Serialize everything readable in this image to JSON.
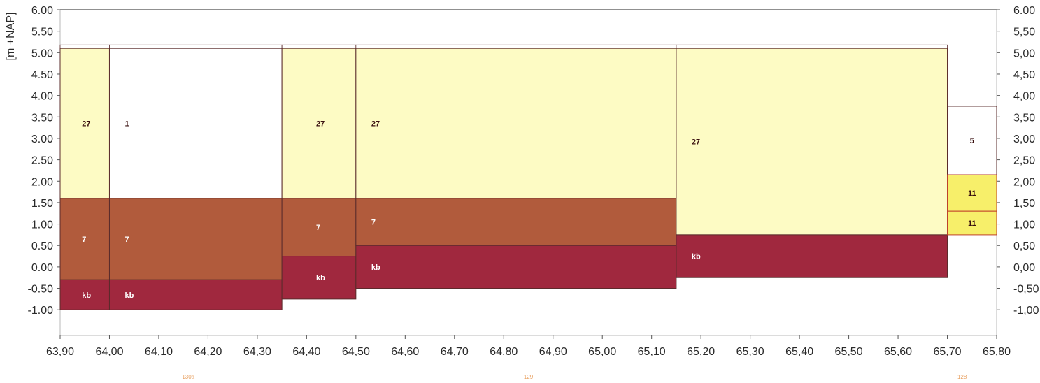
{
  "chart_data": {
    "type": "stacked-profile",
    "ylabel": "[m +NAP]",
    "xlim": [
      63.9,
      65.8
    ],
    "ylim": [
      -1.6,
      6.0
    ],
    "y_ticks_left": [
      "6.00",
      "5.50",
      "5.00",
      "4.50",
      "4.00",
      "3.50",
      "3.00",
      "2.50",
      "2.00",
      "1.50",
      "1.00",
      "0.50",
      "0.00",
      "-0.50",
      "-1.00"
    ],
    "y_ticks_right": [
      "6.00",
      "5,50",
      "5,00",
      "4,50",
      "4,00",
      "3,50",
      "3,00",
      "2,50",
      "2,00",
      "1,50",
      "1,00",
      "0,50",
      "0,00",
      "-0,50",
      "-1,00"
    ],
    "y_tick_values": [
      6.0,
      5.5,
      5.0,
      4.5,
      4.0,
      3.5,
      3.0,
      2.5,
      2.0,
      1.5,
      1.0,
      0.5,
      0.0,
      -0.5,
      -1.0
    ],
    "x_ticks": [
      "63,90",
      "64,00",
      "64,10",
      "64,20",
      "64,30",
      "64,40",
      "64,50",
      "64,60",
      "64,70",
      "64,80",
      "64,90",
      "65,00",
      "65,10",
      "65,20",
      "65,30",
      "65,40",
      "65,50",
      "65,60",
      "65,70",
      "65,80"
    ],
    "x_tick_values": [
      63.9,
      64.0,
      64.1,
      64.2,
      64.3,
      64.4,
      64.5,
      64.6,
      64.7,
      64.8,
      64.9,
      65.0,
      65.1,
      65.2,
      65.3,
      65.4,
      65.5,
      65.6,
      65.7,
      65.8
    ],
    "bottom_labels": [
      {
        "text": "130a",
        "x": 64.16
      },
      {
        "text": "129",
        "x": 64.85
      },
      {
        "text": "128",
        "x": 65.73
      }
    ],
    "colors": {
      "layer_27": "#fdfbc4",
      "layer_1": "#ffffff",
      "layer_7": "#b15b3c",
      "layer_kb": "#a0283e",
      "layer_5": "#ffffff",
      "layer_11": "#f7ef6a",
      "line": "#5a2b2b"
    },
    "columns": [
      {
        "x0": 63.9,
        "x1": 64.0,
        "top": 5.18,
        "layers": [
          {
            "code": "27",
            "top": 5.1,
            "bottom": 1.6
          },
          {
            "code": "7",
            "top": 1.6,
            "bottom": -0.3
          },
          {
            "code": "kb",
            "top": -0.3,
            "bottom": -1.0
          }
        ]
      },
      {
        "x0": 64.0,
        "x1": 64.35,
        "top": 5.18,
        "layers": [
          {
            "code": "1",
            "top": 5.1,
            "bottom": 1.6
          },
          {
            "code": "7",
            "top": 1.6,
            "bottom": -0.3
          },
          {
            "code": "kb",
            "top": -0.3,
            "bottom": -1.0
          }
        ]
      },
      {
        "x0": 64.35,
        "x1": 64.5,
        "top": 5.18,
        "layers": [
          {
            "code": "27",
            "top": 5.1,
            "bottom": 1.6
          },
          {
            "code": "7",
            "top": 1.6,
            "bottom": 0.25
          },
          {
            "code": "kb",
            "top": 0.25,
            "bottom": -0.75
          }
        ]
      },
      {
        "x0": 64.5,
        "x1": 65.15,
        "top": 5.18,
        "layers": [
          {
            "code": "27",
            "top": 5.1,
            "bottom": 1.6
          },
          {
            "code": "7",
            "top": 1.6,
            "bottom": 0.5
          },
          {
            "code": "kb",
            "top": 0.5,
            "bottom": -0.5
          }
        ]
      },
      {
        "x0": 65.15,
        "x1": 65.7,
        "top": 5.18,
        "layers": [
          {
            "code": "27",
            "top": 5.1,
            "bottom": 0.75
          },
          {
            "code": "kb",
            "top": 0.75,
            "bottom": -0.25
          }
        ]
      },
      {
        "x0": 65.7,
        "x1": 65.8,
        "top": 3.75,
        "layers": [
          {
            "code": "5",
            "top": 3.75,
            "bottom": 2.15
          },
          {
            "code": "11",
            "top": 2.15,
            "bottom": 1.3
          },
          {
            "code": "11",
            "top": 1.3,
            "bottom": 0.75
          }
        ]
      }
    ]
  }
}
